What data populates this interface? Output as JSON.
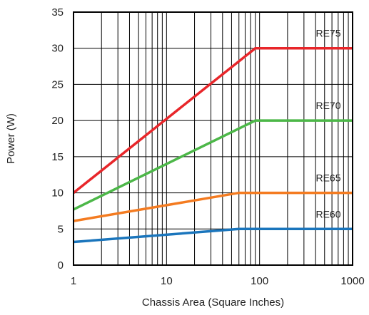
{
  "chart_data": {
    "type": "line",
    "title": "",
    "xlabel": "Chassis Area (Square Inches)",
    "ylabel": "Power (W)",
    "xscale": "log",
    "xlim": [
      1,
      1000
    ],
    "ylim": [
      0,
      35
    ],
    "xticks": [
      1,
      10,
      100,
      1000
    ],
    "xtick_labels": [
      "1",
      "10",
      "100",
      "1000"
    ],
    "yticks": [
      0,
      5,
      10,
      15,
      20,
      25,
      30,
      35
    ],
    "ytick_labels": [
      "0",
      "5",
      "10",
      "15",
      "20",
      "25",
      "30",
      "35"
    ],
    "grid": true,
    "legend": "labels placed directly above each line at the right",
    "series": [
      {
        "name": "RE75",
        "color": "#e8262a",
        "x": [
          1,
          90,
          1000
        ],
        "y": [
          10,
          30,
          30
        ]
      },
      {
        "name": "RE70",
        "color": "#4cb748",
        "x": [
          1,
          90,
          1000
        ],
        "y": [
          7.7,
          20,
          20
        ]
      },
      {
        "name": "RE65",
        "color": "#f47b20",
        "x": [
          1,
          60,
          1000
        ],
        "y": [
          6.1,
          10,
          10
        ]
      },
      {
        "name": "RE60",
        "color": "#1a75bc",
        "x": [
          1,
          60,
          1000
        ],
        "y": [
          3.2,
          5,
          5
        ]
      }
    ]
  }
}
